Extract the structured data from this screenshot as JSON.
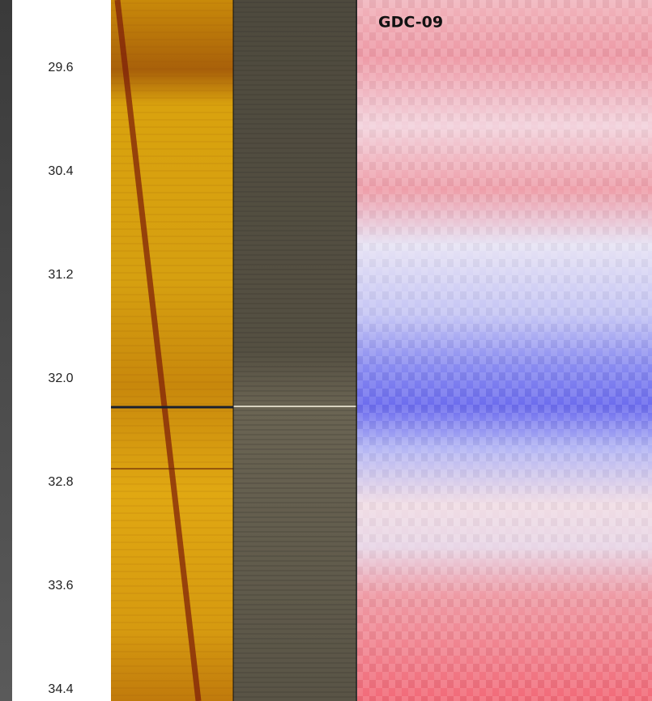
{
  "panel": {
    "title": "GDC-09",
    "depth_labels": [
      "29.6",
      "30.4",
      "31.2",
      "32.0",
      "32.8",
      "33.6",
      "34.4"
    ]
  }
}
